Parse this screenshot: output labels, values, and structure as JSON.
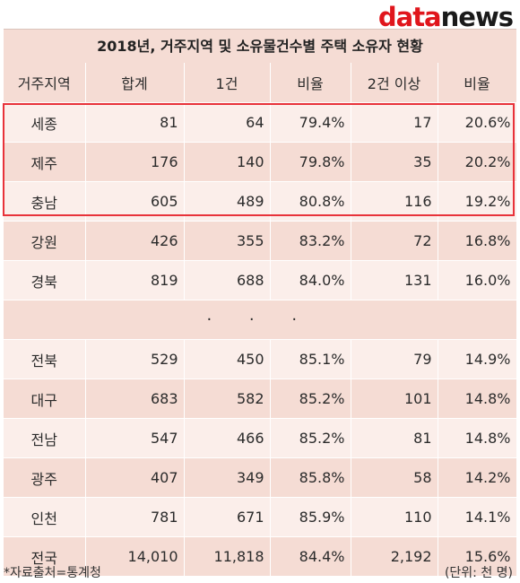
{
  "logo": {
    "part1": "data",
    "part2": "news"
  },
  "title": "2018년, 거주지역 및 소유물건수별 주택 소유자 현황",
  "headers": [
    "거주지역",
    "합계",
    "1건",
    "비율",
    "2건 이상",
    "비율"
  ],
  "rows_top": [
    [
      "세종",
      "81",
      "64",
      "79.4%",
      "17",
      "20.6%"
    ],
    [
      "제주",
      "176",
      "140",
      "79.8%",
      "35",
      "20.2%"
    ],
    [
      "충남",
      "605",
      "489",
      "80.8%",
      "116",
      "19.2%"
    ],
    [
      "강원",
      "426",
      "355",
      "83.2%",
      "72",
      "16.8%"
    ],
    [
      "경북",
      "819",
      "688",
      "84.0%",
      "131",
      "16.0%"
    ]
  ],
  "ellipsis": "· · ·",
  "rows_bottom": [
    [
      "전북",
      "529",
      "450",
      "85.1%",
      "79",
      "14.9%"
    ],
    [
      "대구",
      "683",
      "582",
      "85.2%",
      "101",
      "14.8%"
    ],
    [
      "전남",
      "547",
      "466",
      "85.2%",
      "81",
      "14.8%"
    ],
    [
      "광주",
      "407",
      "349",
      "85.8%",
      "58",
      "14.2%"
    ],
    [
      "인천",
      "781",
      "671",
      "85.9%",
      "110",
      "14.1%"
    ]
  ],
  "total": [
    "전국",
    "14,010",
    "11,818",
    "84.4%",
    "2,192",
    "15.6%"
  ],
  "footer": {
    "source": "*자료출처=통계청",
    "unit": "(단위: 천 명)"
  },
  "colors": {
    "header_bg": "#f5dcd4",
    "row_alt_bg": "#fbeeea",
    "highlight": "#e8323a",
    "logo_red": "#e0161c"
  }
}
